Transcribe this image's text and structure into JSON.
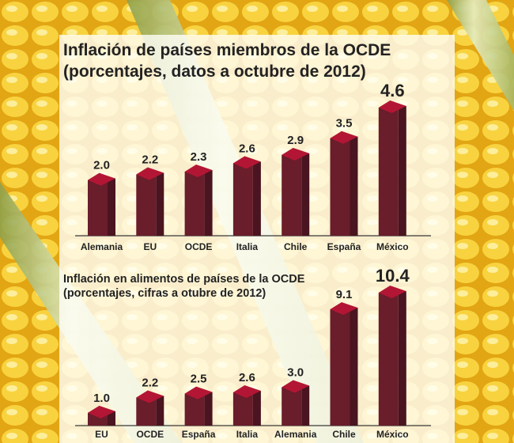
{
  "colors": {
    "bar_front": "#6a1d2b",
    "bar_side": "#4a1420",
    "bar_top": "#b31634",
    "text": "#222222",
    "baseline": "#3a3a3a"
  },
  "chart_data": [
    {
      "type": "bar",
      "title": "Inflación de países miembros de la OCDE",
      "subtitle": "(porcentajes, datos a octubre de 2012)",
      "categories": [
        "Alemania",
        "EU",
        "OCDE",
        "Italia",
        "Chile",
        "España",
        "México"
      ],
      "values": [
        2.0,
        2.2,
        2.3,
        2.6,
        2.9,
        3.5,
        4.6
      ],
      "value_labels": [
        "2.0",
        "2.2",
        "2.3",
        "2.6",
        "2.9",
        "3.5",
        "4.6"
      ],
      "xlabel": "",
      "ylabel": "",
      "ylim": [
        0,
        4.6
      ],
      "grid": false,
      "legend": "none",
      "highlight": "México"
    },
    {
      "type": "bar",
      "title": "Inflación en alimentos de países de la OCDE",
      "subtitle": "(porcentajes, cifras a otubre de 2012)",
      "categories": [
        "EU",
        "OCDE",
        "España",
        "Italia",
        "Alemania",
        "Chile",
        "México"
      ],
      "values": [
        1.0,
        2.2,
        2.5,
        2.6,
        3.0,
        9.1,
        10.4
      ],
      "value_labels": [
        "1.0",
        "2.2",
        "2.5",
        "2.6",
        "3.0",
        "9.1",
        "10.4"
      ],
      "xlabel": "",
      "ylabel": "",
      "ylim": [
        0,
        10.4
      ],
      "grid": false,
      "legend": "none",
      "highlight": "México"
    }
  ]
}
